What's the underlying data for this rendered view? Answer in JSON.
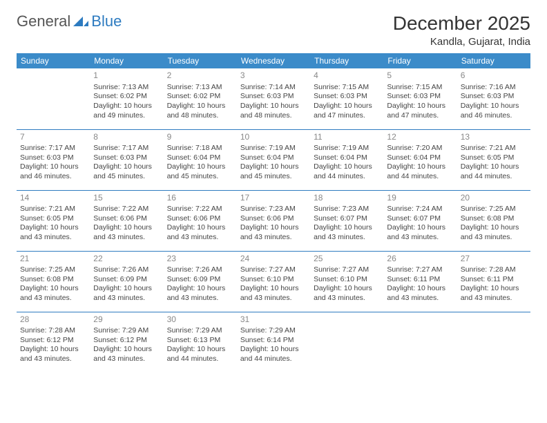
{
  "logo": {
    "word1": "General",
    "word2": "Blue"
  },
  "title": "December 2025",
  "location": "Kandla, Gujarat, India",
  "colors": {
    "header_bg": "#3b8bc9",
    "header_text": "#ffffff",
    "rule": "#2d7bc0",
    "daynum": "#888888",
    "body_text": "#444444",
    "page_bg": "#ffffff"
  },
  "weekdays": [
    "Sunday",
    "Monday",
    "Tuesday",
    "Wednesday",
    "Thursday",
    "Friday",
    "Saturday"
  ],
  "cells": [
    {
      "day": "",
      "sunrise": "",
      "sunset": "",
      "daylight": ""
    },
    {
      "day": "1",
      "sunrise": "Sunrise: 7:13 AM",
      "sunset": "Sunset: 6:02 PM",
      "daylight": "Daylight: 10 hours and 49 minutes."
    },
    {
      "day": "2",
      "sunrise": "Sunrise: 7:13 AM",
      "sunset": "Sunset: 6:02 PM",
      "daylight": "Daylight: 10 hours and 48 minutes."
    },
    {
      "day": "3",
      "sunrise": "Sunrise: 7:14 AM",
      "sunset": "Sunset: 6:03 PM",
      "daylight": "Daylight: 10 hours and 48 minutes."
    },
    {
      "day": "4",
      "sunrise": "Sunrise: 7:15 AM",
      "sunset": "Sunset: 6:03 PM",
      "daylight": "Daylight: 10 hours and 47 minutes."
    },
    {
      "day": "5",
      "sunrise": "Sunrise: 7:15 AM",
      "sunset": "Sunset: 6:03 PM",
      "daylight": "Daylight: 10 hours and 47 minutes."
    },
    {
      "day": "6",
      "sunrise": "Sunrise: 7:16 AM",
      "sunset": "Sunset: 6:03 PM",
      "daylight": "Daylight: 10 hours and 46 minutes."
    },
    {
      "day": "7",
      "sunrise": "Sunrise: 7:17 AM",
      "sunset": "Sunset: 6:03 PM",
      "daylight": "Daylight: 10 hours and 46 minutes."
    },
    {
      "day": "8",
      "sunrise": "Sunrise: 7:17 AM",
      "sunset": "Sunset: 6:03 PM",
      "daylight": "Daylight: 10 hours and 45 minutes."
    },
    {
      "day": "9",
      "sunrise": "Sunrise: 7:18 AM",
      "sunset": "Sunset: 6:04 PM",
      "daylight": "Daylight: 10 hours and 45 minutes."
    },
    {
      "day": "10",
      "sunrise": "Sunrise: 7:19 AM",
      "sunset": "Sunset: 6:04 PM",
      "daylight": "Daylight: 10 hours and 45 minutes."
    },
    {
      "day": "11",
      "sunrise": "Sunrise: 7:19 AM",
      "sunset": "Sunset: 6:04 PM",
      "daylight": "Daylight: 10 hours and 44 minutes."
    },
    {
      "day": "12",
      "sunrise": "Sunrise: 7:20 AM",
      "sunset": "Sunset: 6:04 PM",
      "daylight": "Daylight: 10 hours and 44 minutes."
    },
    {
      "day": "13",
      "sunrise": "Sunrise: 7:21 AM",
      "sunset": "Sunset: 6:05 PM",
      "daylight": "Daylight: 10 hours and 44 minutes."
    },
    {
      "day": "14",
      "sunrise": "Sunrise: 7:21 AM",
      "sunset": "Sunset: 6:05 PM",
      "daylight": "Daylight: 10 hours and 43 minutes."
    },
    {
      "day": "15",
      "sunrise": "Sunrise: 7:22 AM",
      "sunset": "Sunset: 6:06 PM",
      "daylight": "Daylight: 10 hours and 43 minutes."
    },
    {
      "day": "16",
      "sunrise": "Sunrise: 7:22 AM",
      "sunset": "Sunset: 6:06 PM",
      "daylight": "Daylight: 10 hours and 43 minutes."
    },
    {
      "day": "17",
      "sunrise": "Sunrise: 7:23 AM",
      "sunset": "Sunset: 6:06 PM",
      "daylight": "Daylight: 10 hours and 43 minutes."
    },
    {
      "day": "18",
      "sunrise": "Sunrise: 7:23 AM",
      "sunset": "Sunset: 6:07 PM",
      "daylight": "Daylight: 10 hours and 43 minutes."
    },
    {
      "day": "19",
      "sunrise": "Sunrise: 7:24 AM",
      "sunset": "Sunset: 6:07 PM",
      "daylight": "Daylight: 10 hours and 43 minutes."
    },
    {
      "day": "20",
      "sunrise": "Sunrise: 7:25 AM",
      "sunset": "Sunset: 6:08 PM",
      "daylight": "Daylight: 10 hours and 43 minutes."
    },
    {
      "day": "21",
      "sunrise": "Sunrise: 7:25 AM",
      "sunset": "Sunset: 6:08 PM",
      "daylight": "Daylight: 10 hours and 43 minutes."
    },
    {
      "day": "22",
      "sunrise": "Sunrise: 7:26 AM",
      "sunset": "Sunset: 6:09 PM",
      "daylight": "Daylight: 10 hours and 43 minutes."
    },
    {
      "day": "23",
      "sunrise": "Sunrise: 7:26 AM",
      "sunset": "Sunset: 6:09 PM",
      "daylight": "Daylight: 10 hours and 43 minutes."
    },
    {
      "day": "24",
      "sunrise": "Sunrise: 7:27 AM",
      "sunset": "Sunset: 6:10 PM",
      "daylight": "Daylight: 10 hours and 43 minutes."
    },
    {
      "day": "25",
      "sunrise": "Sunrise: 7:27 AM",
      "sunset": "Sunset: 6:10 PM",
      "daylight": "Daylight: 10 hours and 43 minutes."
    },
    {
      "day": "26",
      "sunrise": "Sunrise: 7:27 AM",
      "sunset": "Sunset: 6:11 PM",
      "daylight": "Daylight: 10 hours and 43 minutes."
    },
    {
      "day": "27",
      "sunrise": "Sunrise: 7:28 AM",
      "sunset": "Sunset: 6:11 PM",
      "daylight": "Daylight: 10 hours and 43 minutes."
    },
    {
      "day": "28",
      "sunrise": "Sunrise: 7:28 AM",
      "sunset": "Sunset: 6:12 PM",
      "daylight": "Daylight: 10 hours and 43 minutes."
    },
    {
      "day": "29",
      "sunrise": "Sunrise: 7:29 AM",
      "sunset": "Sunset: 6:12 PM",
      "daylight": "Daylight: 10 hours and 43 minutes."
    },
    {
      "day": "30",
      "sunrise": "Sunrise: 7:29 AM",
      "sunset": "Sunset: 6:13 PM",
      "daylight": "Daylight: 10 hours and 44 minutes."
    },
    {
      "day": "31",
      "sunrise": "Sunrise: 7:29 AM",
      "sunset": "Sunset: 6:14 PM",
      "daylight": "Daylight: 10 hours and 44 minutes."
    },
    {
      "day": "",
      "sunrise": "",
      "sunset": "",
      "daylight": ""
    },
    {
      "day": "",
      "sunrise": "",
      "sunset": "",
      "daylight": ""
    },
    {
      "day": "",
      "sunrise": "",
      "sunset": "",
      "daylight": ""
    }
  ]
}
